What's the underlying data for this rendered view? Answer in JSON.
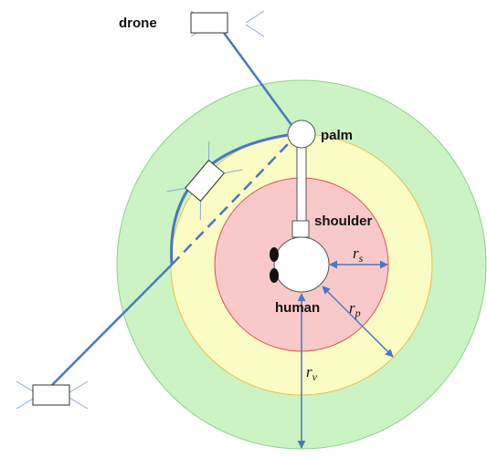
{
  "labels": {
    "drone": "drone",
    "palm": "palm",
    "shoulder": "shoulder",
    "human": "human"
  },
  "radii": [
    {
      "symbol": "r",
      "subscript": "s"
    },
    {
      "symbol": "r",
      "subscript": "p"
    },
    {
      "symbol": "r",
      "subscript": "v"
    }
  ]
}
